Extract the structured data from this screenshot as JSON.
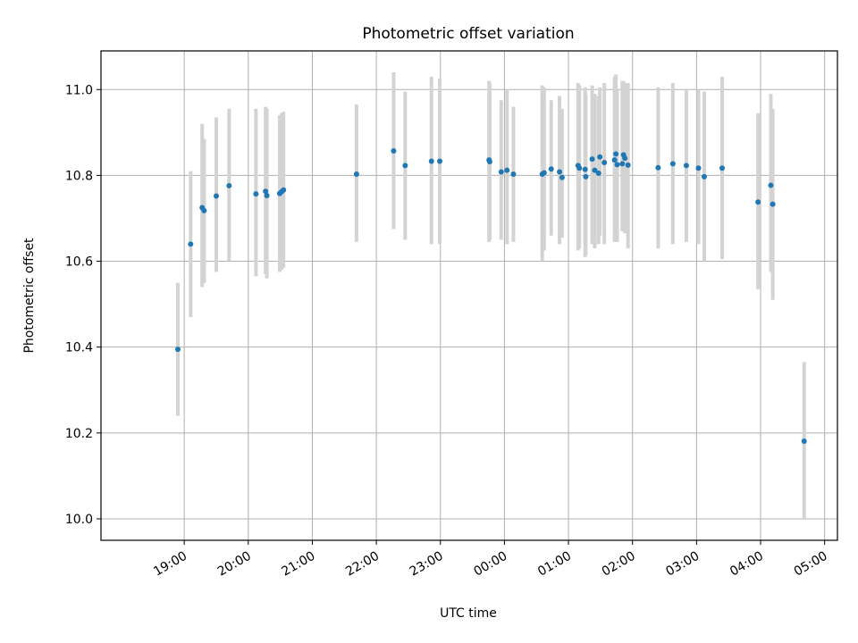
{
  "chart_data": {
    "type": "scatter",
    "title": "Photometric offset variation",
    "xlabel": "UTC time",
    "ylabel": "Photometric offset",
    "grid": true,
    "x_unit": "UTC hours since 00:00 of the first day (ticks labelled as clock times)",
    "xlim": [
      17.7,
      29.2
    ],
    "ylim": [
      9.95,
      11.09
    ],
    "x_ticks": [
      {
        "x": 19,
        "label": "19:00"
      },
      {
        "x": 20,
        "label": "20:00"
      },
      {
        "x": 21,
        "label": "21:00"
      },
      {
        "x": 22,
        "label": "22:00"
      },
      {
        "x": 23,
        "label": "23:00"
      },
      {
        "x": 24,
        "label": "00:00"
      },
      {
        "x": 25,
        "label": "01:00"
      },
      {
        "x": 26,
        "label": "02:00"
      },
      {
        "x": 27,
        "label": "03:00"
      },
      {
        "x": 28,
        "label": "04:00"
      },
      {
        "x": 29,
        "label": "05:00"
      }
    ],
    "y_ticks": [
      {
        "y": 10.0,
        "label": "10.0"
      },
      {
        "y": 10.2,
        "label": "10.2"
      },
      {
        "y": 10.4,
        "label": "10.4"
      },
      {
        "y": 10.6,
        "label": "10.6"
      },
      {
        "y": 10.8,
        "label": "10.8"
      },
      {
        "y": 11.0,
        "label": "11.0"
      }
    ],
    "colors": {
      "points": "#1f77b4",
      "errorbars": "#d3d3d3",
      "grid": "#b0b0b0"
    },
    "series": [
      {
        "points": [
          {
            "x": 18.9,
            "y": 10.395,
            "lo": 10.24,
            "hi": 10.55
          },
          {
            "x": 19.1,
            "y": 10.64,
            "lo": 10.47,
            "hi": 10.81
          },
          {
            "x": 19.28,
            "y": 10.725,
            "lo": 10.54,
            "hi": 10.92
          },
          {
            "x": 19.31,
            "y": 10.718,
            "lo": 10.55,
            "hi": 10.885
          },
          {
            "x": 19.5,
            "y": 10.752,
            "lo": 10.575,
            "hi": 10.935
          },
          {
            "x": 19.7,
            "y": 10.776,
            "lo": 10.6,
            "hi": 10.955
          },
          {
            "x": 20.12,
            "y": 10.757,
            "lo": 10.565,
            "hi": 10.955
          },
          {
            "x": 20.27,
            "y": 10.763,
            "lo": 10.57,
            "hi": 10.96
          },
          {
            "x": 20.29,
            "y": 10.753,
            "lo": 10.56,
            "hi": 10.955
          },
          {
            "x": 20.49,
            "y": 10.758,
            "lo": 10.575,
            "hi": 10.94
          },
          {
            "x": 20.52,
            "y": 10.762,
            "lo": 10.58,
            "hi": 10.945
          },
          {
            "x": 20.55,
            "y": 10.766,
            "lo": 10.585,
            "hi": 10.948
          },
          {
            "x": 21.69,
            "y": 10.803,
            "lo": 10.645,
            "hi": 10.965
          },
          {
            "x": 22.27,
            "y": 10.857,
            "lo": 10.675,
            "hi": 11.04
          },
          {
            "x": 22.45,
            "y": 10.823,
            "lo": 10.65,
            "hi": 10.995
          },
          {
            "x": 22.86,
            "y": 10.833,
            "lo": 10.64,
            "hi": 11.03
          },
          {
            "x": 22.99,
            "y": 10.833,
            "lo": 10.64,
            "hi": 11.025
          },
          {
            "x": 23.76,
            "y": 10.836,
            "lo": 10.645,
            "hi": 11.02
          },
          {
            "x": 23.77,
            "y": 10.832,
            "lo": 10.65,
            "hi": 11.015
          },
          {
            "x": 23.95,
            "y": 10.808,
            "lo": 10.65,
            "hi": 10.975
          },
          {
            "x": 24.04,
            "y": 10.812,
            "lo": 10.64,
            "hi": 11.0
          },
          {
            "x": 24.14,
            "y": 10.803,
            "lo": 10.645,
            "hi": 10.96
          },
          {
            "x": 24.59,
            "y": 10.803,
            "lo": 10.6,
            "hi": 11.01
          },
          {
            "x": 24.62,
            "y": 10.806,
            "lo": 10.625,
            "hi": 11.005
          },
          {
            "x": 24.73,
            "y": 10.815,
            "lo": 10.66,
            "hi": 10.975
          },
          {
            "x": 24.86,
            "y": 10.808,
            "lo": 10.64,
            "hi": 10.985
          },
          {
            "x": 24.9,
            "y": 10.795,
            "lo": 10.655,
            "hi": 10.955
          },
          {
            "x": 25.15,
            "y": 10.823,
            "lo": 10.625,
            "hi": 11.015
          },
          {
            "x": 25.17,
            "y": 10.817,
            "lo": 10.63,
            "hi": 11.01
          },
          {
            "x": 25.26,
            "y": 10.814,
            "lo": 10.61,
            "hi": 11.005
          },
          {
            "x": 25.27,
            "y": 10.797,
            "lo": 10.615,
            "hi": 10.99
          },
          {
            "x": 25.37,
            "y": 10.838,
            "lo": 10.64,
            "hi": 11.01
          },
          {
            "x": 25.41,
            "y": 10.812,
            "lo": 10.63,
            "hi": 10.99
          },
          {
            "x": 25.47,
            "y": 10.805,
            "lo": 10.64,
            "hi": 10.985
          },
          {
            "x": 25.49,
            "y": 10.843,
            "lo": 10.66,
            "hi": 11.005
          },
          {
            "x": 25.56,
            "y": 10.83,
            "lo": 10.64,
            "hi": 11.015
          },
          {
            "x": 25.72,
            "y": 10.836,
            "lo": 10.645,
            "hi": 11.03
          },
          {
            "x": 25.74,
            "y": 10.85,
            "lo": 10.66,
            "hi": 11.035
          },
          {
            "x": 25.76,
            "y": 10.825,
            "lo": 10.645,
            "hi": 11.0
          },
          {
            "x": 25.84,
            "y": 10.827,
            "lo": 10.67,
            "hi": 11.02
          },
          {
            "x": 25.86,
            "y": 10.848,
            "lo": 10.67,
            "hi": 11.02
          },
          {
            "x": 25.88,
            "y": 10.84,
            "lo": 10.665,
            "hi": 11.015
          },
          {
            "x": 25.93,
            "y": 10.824,
            "lo": 10.63,
            "hi": 11.015
          },
          {
            "x": 26.4,
            "y": 10.818,
            "lo": 10.63,
            "hi": 11.005
          },
          {
            "x": 26.63,
            "y": 10.827,
            "lo": 10.64,
            "hi": 11.015
          },
          {
            "x": 26.84,
            "y": 10.823,
            "lo": 10.645,
            "hi": 11.0
          },
          {
            "x": 27.03,
            "y": 10.817,
            "lo": 10.64,
            "hi": 11.0
          },
          {
            "x": 27.12,
            "y": 10.797,
            "lo": 10.6,
            "hi": 10.995
          },
          {
            "x": 27.4,
            "y": 10.817,
            "lo": 10.605,
            "hi": 11.03
          },
          {
            "x": 27.96,
            "y": 10.738,
            "lo": 10.535,
            "hi": 10.945
          },
          {
            "x": 28.16,
            "y": 10.777,
            "lo": 10.575,
            "hi": 10.99
          },
          {
            "x": 28.19,
            "y": 10.733,
            "lo": 10.51,
            "hi": 10.955
          },
          {
            "x": 28.68,
            "y": 10.181,
            "lo": 10.0,
            "hi": 10.365
          }
        ]
      }
    ]
  }
}
